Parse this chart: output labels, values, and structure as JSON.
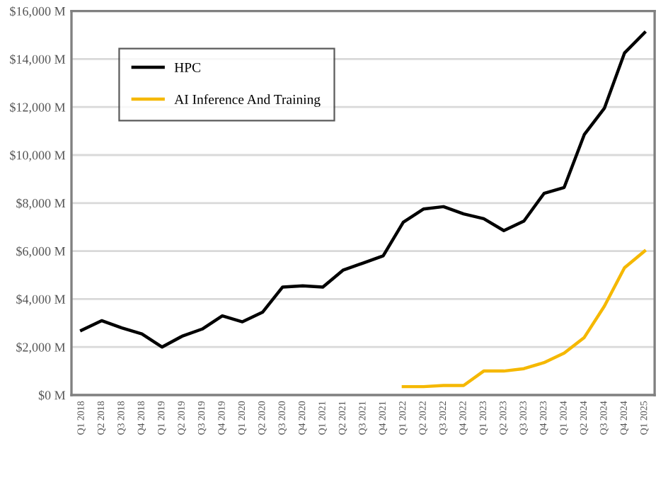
{
  "chart_data": {
    "type": "line",
    "categories": [
      "Q1 2018",
      "Q2 2018",
      "Q3 2018",
      "Q4 2018",
      "Q1 2019",
      "Q2 2019",
      "Q3 2019",
      "Q4 2019",
      "Q1 2020",
      "Q2 2020",
      "Q3 2020",
      "Q4 2020",
      "Q1 2021",
      "Q2 2021",
      "Q3 2021",
      "Q4 2021",
      "Q1 2022",
      "Q2 2022",
      "Q3 2022",
      "Q4 2022",
      "Q1 2023",
      "Q2 2023",
      "Q3 2023",
      "Q4 2023",
      "Q1 2024",
      "Q2 2024",
      "Q3 2024",
      "Q4 2024",
      "Q1 2025"
    ],
    "series": [
      {
        "name": "HPC",
        "color": "#000000",
        "values": [
          2700,
          3100,
          2800,
          2550,
          2000,
          2450,
          2750,
          3300,
          3050,
          3450,
          4500,
          4550,
          4500,
          5200,
          5500,
          5800,
          7200,
          7750,
          7850,
          7550,
          7350,
          6850,
          7250,
          8400,
          8650,
          10850,
          11950,
          14250,
          15100
        ]
      },
      {
        "name": "AI Inference And Training",
        "color": "#f5b800",
        "values": [
          null,
          null,
          null,
          null,
          null,
          null,
          null,
          null,
          null,
          null,
          null,
          null,
          null,
          null,
          null,
          null,
          350,
          350,
          400,
          400,
          1000,
          1000,
          1100,
          1350,
          1750,
          2400,
          3700,
          5300,
          6000
        ]
      }
    ],
    "ylim": [
      0,
      16000
    ],
    "yticks": [
      {
        "value": 0,
        "label": "$0 M"
      },
      {
        "value": 2000,
        "label": "$2,000 M"
      },
      {
        "value": 4000,
        "label": "$4,000 M"
      },
      {
        "value": 6000,
        "label": "$6,000 M"
      },
      {
        "value": 8000,
        "label": "$8,000 M"
      },
      {
        "value": 10000,
        "label": "$10,000 M"
      },
      {
        "value": 12000,
        "label": "$12,000 M"
      },
      {
        "value": 14000,
        "label": "$14,000 M"
      },
      {
        "value": 16000,
        "label": "$16,000 M"
      }
    ],
    "grid": "y",
    "legend": "top left",
    "marker": "none",
    "line_style": "solid"
  }
}
